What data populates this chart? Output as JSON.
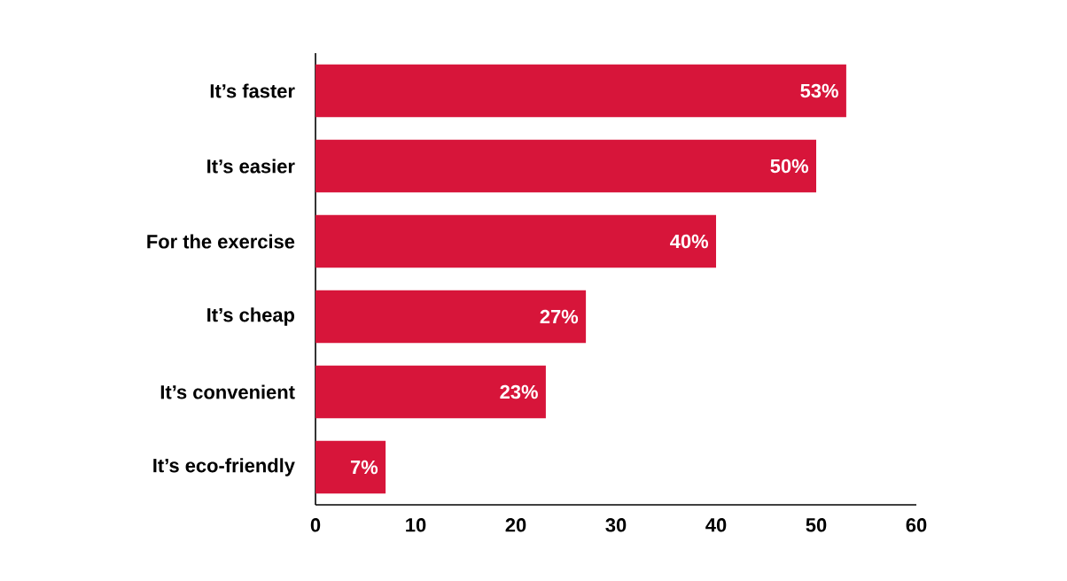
{
  "chart_data": {
    "type": "bar",
    "orientation": "horizontal",
    "categories": [
      "It’s faster",
      "It’s easier",
      "For the exercise",
      "It’s cheap",
      "It’s convenient",
      "It’s eco-friendly"
    ],
    "values": [
      53,
      50,
      40,
      27,
      23,
      7
    ],
    "value_labels": [
      "53%",
      "50%",
      "40%",
      "27%",
      "23%",
      "7%"
    ],
    "color": "#d7153a",
    "xlim": [
      0,
      60
    ],
    "xticks": [
      0,
      10,
      20,
      30,
      40,
      50,
      60
    ]
  }
}
